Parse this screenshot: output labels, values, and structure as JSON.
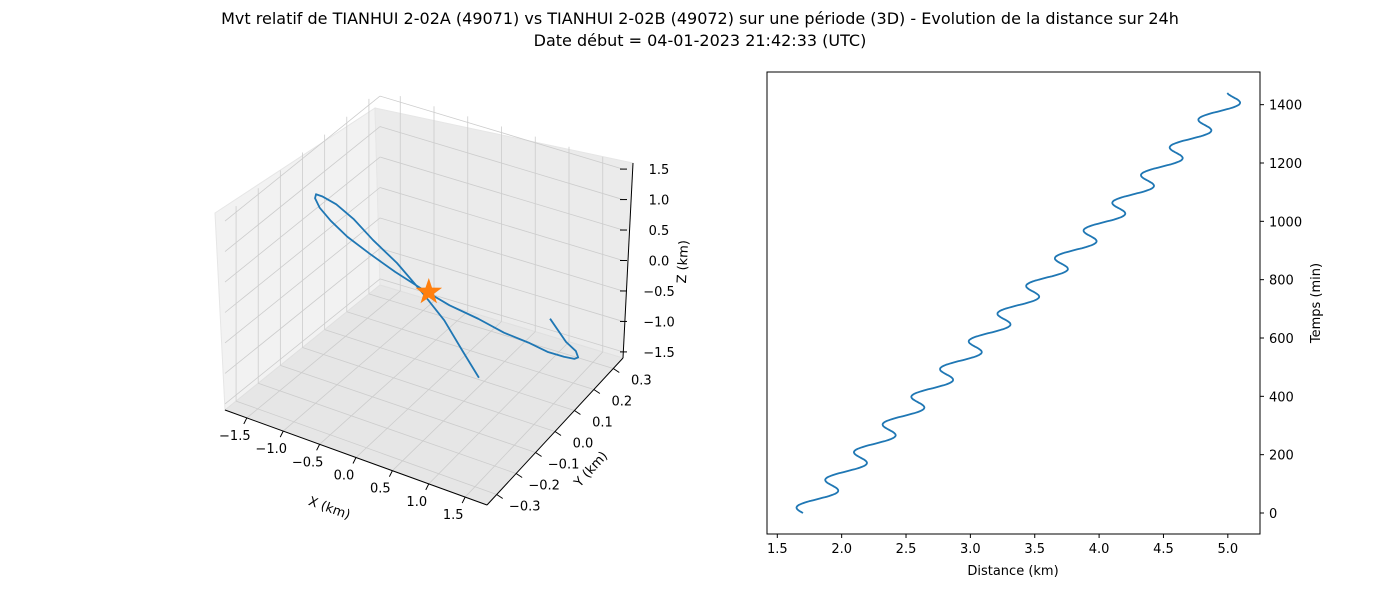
{
  "figure": {
    "title_line1": "Mvt relatif de TIANHUI 2-02A (49071) vs TIANHUI 2-02B (49072) sur une période (3D) - Evolution de la distance sur 24h",
    "title_line2": "Date début = 04-01-2023 21:42:33 (UTC)"
  },
  "colors": {
    "series": "#1f77b4",
    "marker": "#ff7f0e",
    "pane": "#f2f2f2",
    "grid": "#cccccc"
  },
  "chart_data": [
    {
      "type": "line3d",
      "xlabel": "X (km)",
      "ylabel": "Y (km)",
      "zlabel": "Z (km)",
      "xlim": [
        -1.8,
        1.8
      ],
      "ylim": [
        -0.35,
        0.35
      ],
      "zlim": [
        -1.6,
        1.6
      ],
      "x_ticks": [
        "−1.5",
        "−1.0",
        "−0.5",
        "0.0",
        "0.5",
        "1.0",
        "1.5"
      ],
      "y_ticks": [
        "−0.3",
        "−0.2",
        "−0.1",
        "0.0",
        "0.1",
        "0.2",
        "0.3"
      ],
      "z_ticks": [
        "−1.5",
        "−1.0",
        "−0.5",
        "0.0",
        "0.5",
        "1.0",
        "1.5"
      ],
      "series": [
        {
          "kind": "relative-orbit",
          "x": [
            1.59,
            1.68,
            1.68,
            1.6,
            1.43,
            1.19,
            0.89,
            0.55,
            0.19,
            -0.19,
            -0.55,
            -0.89,
            -1.19,
            -1.43,
            -1.6,
            -1.68,
            -1.68,
            -1.59,
            -1.42,
            -1.18,
            -0.86,
            -0.5,
            -0.11,
            0.28,
            0.67,
            1.02,
            1.3,
            1.5
          ],
          "y": [
            0.05,
            0.1,
            0.15,
            0.19,
            0.23,
            0.26,
            0.28,
            0.3,
            0.3,
            0.3,
            0.28,
            0.26,
            0.23,
            0.19,
            0.14,
            0.09,
            0.04,
            -0.01,
            -0.06,
            -0.11,
            -0.15,
            -0.19,
            -0.23,
            -0.25,
            -0.27,
            -0.28,
            -0.29,
            -0.28
          ],
          "z": [
            0.0,
            -0.52,
            -0.84,
            -1.11,
            -1.33,
            -1.48,
            -1.57,
            -1.6,
            -1.56,
            -1.46,
            -1.3,
            -1.09,
            -0.82,
            -0.49,
            -0.12,
            0.26,
            0.62,
            0.96,
            1.24,
            1.45,
            1.57,
            1.6,
            1.54,
            1.39,
            1.16,
            0.86,
            0.51,
            0.12
          ]
        }
      ],
      "marker": {
        "symbol": "star",
        "x": 0.0,
        "y": 0.0,
        "z": 0.0
      }
    },
    {
      "type": "line",
      "xlabel": "Distance (km)",
      "ylabel": "Temps (min)",
      "xlim": [
        1.42,
        5.25
      ],
      "ylim": [
        -72,
        1512
      ],
      "x_ticks": [
        1.5,
        2.0,
        2.5,
        3.0,
        3.5,
        4.0,
        4.5,
        5.0
      ],
      "y_ticks": [
        0,
        200,
        400,
        600,
        800,
        1000,
        1200,
        1400
      ],
      "series": [
        {
          "kind": "distance-vs-time",
          "start": {
            "t": 0,
            "d": 1.7
          },
          "end": {
            "t": 1440,
            "d": 5.08
          },
          "wiggle_amplitude_km": 0.1,
          "wiggle_period_min": 95
        }
      ]
    }
  ]
}
